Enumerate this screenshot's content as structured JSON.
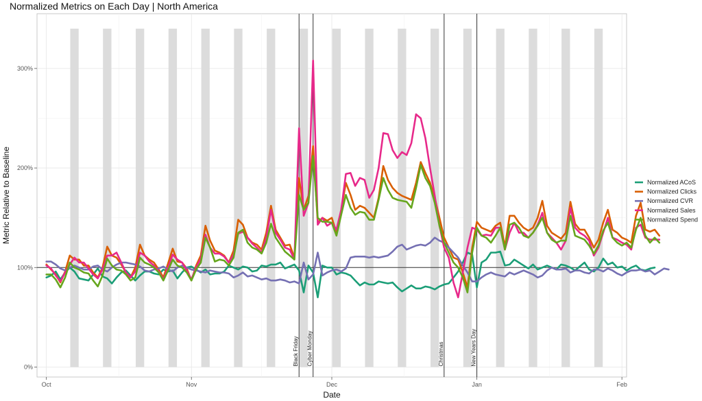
{
  "chart_data": {
    "type": "line",
    "title": "Normalized Metrics on Each Day | North America",
    "xlabel": "Date",
    "ylabel": "Metric Relative to Baseline",
    "x_start": "2023-10-01",
    "x_end": "2024-01-31",
    "xlim": [
      "2023-09-29",
      "2024-02-02"
    ],
    "ylim": [
      -0.1,
      3.55
    ],
    "x_ticks": [
      {
        "date": "2023-10-01",
        "label": "Oct"
      },
      {
        "date": "2023-11-01",
        "label": "Nov"
      },
      {
        "date": "2023-12-01",
        "label": "Dec"
      },
      {
        "date": "2024-01-01",
        "label": "Jan"
      },
      {
        "date": "2024-02-01",
        "label": "Feb"
      }
    ],
    "y_ticks": [
      {
        "value": 0,
        "label": "0%"
      },
      {
        "value": 1,
        "label": "100%"
      },
      {
        "value": 2,
        "label": "200%"
      },
      {
        "value": 3,
        "label": "300%"
      }
    ],
    "baseline": 1,
    "grid": true,
    "legend_position": "right",
    "weekend_shading": {
      "start": "2023-10-07",
      "end": "2024-01-28",
      "every_days": 7,
      "top_value": 3.4,
      "color": "#dcdcdc"
    },
    "events": [
      {
        "date": "2023-11-24",
        "label": "Black Friday"
      },
      {
        "date": "2023-11-27",
        "label": "Cyber Monday"
      },
      {
        "date": "2023-12-25",
        "label": "Christmas"
      },
      {
        "date": "2024-01-01",
        "label": "New Years Day"
      }
    ],
    "series": [
      {
        "name": "Normalized ACoS",
        "color": "#1b9e77",
        "values": [
          0.9,
          0.92,
          0.96,
          0.88,
          0.95,
          1.0,
          0.96,
          0.89,
          0.88,
          0.87,
          0.93,
          0.99,
          0.91,
          0.89,
          0.84,
          0.9,
          0.95,
          0.97,
          0.92,
          0.87,
          0.92,
          0.96,
          0.96,
          0.94,
          0.93,
          0.98,
          0.96,
          0.97,
          0.89,
          0.95,
          1.0,
          1.01,
          0.98,
          0.95,
          0.98,
          0.93,
          0.94,
          0.94,
          0.96,
          1.02,
          1.0,
          0.98,
          1.01,
          1.0,
          0.96,
          0.97,
          1.02,
          1.01,
          1.03,
          1.03,
          1.05,
          0.99,
          1.01,
          1.03,
          0.97,
          0.75,
          1.02,
          0.95,
          0.7,
          1.02,
          1.0,
          1.0,
          0.93,
          0.95,
          0.94,
          0.92,
          0.87,
          0.82,
          0.85,
          0.83,
          0.83,
          0.86,
          0.85,
          0.84,
          0.85,
          0.8,
          0.76,
          0.79,
          0.82,
          0.79,
          0.79,
          0.81,
          0.8,
          0.78,
          0.81,
          0.83,
          0.84,
          0.9,
          0.96,
          1.05,
          1.15,
          1.13,
          0.8,
          1.05,
          1.08,
          1.15,
          1.15,
          1.16,
          1.02,
          1.03,
          1.08,
          1.05,
          1.02,
          0.99,
          1.03,
          0.98,
          1.0,
          1.02,
          1.0,
          0.98,
          1.03,
          1.02,
          1.0,
          0.97,
          1.01,
          1.05,
          0.98,
          0.96,
          1.0,
          1.09,
          1.03,
          1.05,
          1.0,
          1.01,
          0.97,
          1.0,
          1.02,
          0.98,
          0.97,
          0.99,
          1.0
        ]
      },
      {
        "name": "Normalized Clicks",
        "color": "#d95f02",
        "values": [
          1.03,
          0.98,
          0.93,
          0.85,
          0.96,
          1.12,
          1.08,
          1.08,
          1.02,
          1.02,
          0.95,
          0.9,
          1.0,
          1.21,
          1.12,
          1.1,
          1.03,
          0.95,
          0.9,
          1.0,
          1.23,
          1.12,
          1.08,
          1.05,
          0.98,
          0.9,
          1.04,
          1.19,
          1.06,
          1.05,
          0.99,
          0.87,
          1.02,
          1.12,
          1.42,
          1.27,
          1.17,
          1.15,
          1.12,
          1.05,
          1.17,
          1.48,
          1.43,
          1.3,
          1.25,
          1.23,
          1.18,
          1.35,
          1.62,
          1.38,
          1.3,
          1.22,
          1.23,
          1.1,
          1.9,
          1.58,
          1.72,
          2.22,
          1.45,
          1.5,
          1.47,
          1.5,
          1.35,
          1.58,
          1.85,
          1.73,
          1.58,
          1.62,
          1.6,
          1.55,
          1.5,
          1.7,
          2.02,
          1.88,
          1.8,
          1.75,
          1.72,
          1.7,
          1.68,
          1.85,
          2.06,
          1.95,
          1.85,
          1.7,
          1.5,
          1.3,
          1.2,
          1.1,
          1.08,
          0.95,
          0.8,
          1.2,
          1.46,
          1.4,
          1.38,
          1.36,
          1.42,
          1.45,
          1.21,
          1.52,
          1.52,
          1.45,
          1.4,
          1.37,
          1.4,
          1.5,
          1.67,
          1.42,
          1.35,
          1.32,
          1.29,
          1.35,
          1.66,
          1.44,
          1.38,
          1.38,
          1.3,
          1.2,
          1.28,
          1.45,
          1.58,
          1.38,
          1.35,
          1.3,
          1.28,
          1.25,
          1.52,
          1.65,
          1.38,
          1.36,
          1.38,
          1.32
        ]
      },
      {
        "name": "Normalized CVR",
        "color": "#7570b3",
        "values": [
          1.06,
          1.06,
          1.03,
          0.99,
          0.97,
          1.0,
          1.02,
          1.0,
          0.98,
          0.98,
          1.01,
          1.02,
          0.98,
          0.96,
          1.0,
          1.03,
          1.05,
          1.05,
          1.04,
          1.03,
          1.01,
          0.97,
          0.96,
          0.98,
          0.99,
          1.01,
          0.98,
          0.96,
          1.0,
          1.02,
          1.0,
          0.98,
          0.97,
          0.96,
          0.95,
          0.97,
          0.96,
          0.95,
          0.95,
          0.94,
          0.9,
          0.92,
          0.95,
          0.91,
          0.92,
          0.9,
          0.88,
          0.89,
          0.87,
          0.87,
          0.88,
          0.87,
          0.85,
          0.86,
          0.84,
          1.05,
          0.88,
          0.93,
          1.15,
          0.92,
          0.95,
          0.97,
          0.98,
          0.96,
          0.99,
          1.1,
          1.11,
          1.11,
          1.11,
          1.1,
          1.11,
          1.1,
          1.11,
          1.12,
          1.16,
          1.21,
          1.23,
          1.18,
          1.2,
          1.22,
          1.23,
          1.22,
          1.25,
          1.3,
          1.27,
          1.25,
          1.2,
          1.15,
          1.1,
          1.02,
          0.95,
          0.86,
          0.86,
          0.9,
          0.93,
          0.95,
          0.93,
          0.92,
          0.91,
          0.95,
          0.93,
          0.95,
          0.97,
          0.95,
          0.93,
          0.9,
          0.92,
          0.97,
          1.0,
          0.98,
          0.98,
          0.99,
          0.95,
          0.97,
          0.97,
          0.95,
          0.94,
          0.98,
          0.98,
          0.96,
          0.99,
          0.97,
          0.94,
          0.92,
          0.95,
          0.97,
          0.97,
          0.98,
          0.96,
          0.97,
          0.93,
          0.96,
          0.99,
          0.98
        ]
      },
      {
        "name": "Normalized Sales",
        "color": "#e7298a",
        "values": [
          1.02,
          0.99,
          0.92,
          0.86,
          0.95,
          1.03,
          1.1,
          1.05,
          1.05,
          0.99,
          0.93,
          0.89,
          0.98,
          1.12,
          1.12,
          1.15,
          1.05,
          0.95,
          0.9,
          0.96,
          1.15,
          1.12,
          1.06,
          1.02,
          0.96,
          0.88,
          1.0,
          1.13,
          1.08,
          1.05,
          0.97,
          0.88,
          1.0,
          1.09,
          1.33,
          1.2,
          1.14,
          1.14,
          1.11,
          1.05,
          1.13,
          1.34,
          1.36,
          1.3,
          1.24,
          1.2,
          1.15,
          1.3,
          1.58,
          1.35,
          1.28,
          1.2,
          1.18,
          1.08,
          2.4,
          1.52,
          1.65,
          3.08,
          1.43,
          1.5,
          1.42,
          1.45,
          1.38,
          1.58,
          1.94,
          1.95,
          1.82,
          1.9,
          1.88,
          1.7,
          1.78,
          2.0,
          2.35,
          2.34,
          2.18,
          2.1,
          2.16,
          2.13,
          2.25,
          2.54,
          2.5,
          2.3,
          2.0,
          1.72,
          1.42,
          1.2,
          1.1,
          0.85,
          0.7,
          0.95,
          1.2,
          1.4,
          1.38,
          1.32,
          1.33,
          1.32,
          1.4,
          1.4,
          1.18,
          1.35,
          1.45,
          1.35,
          1.35,
          1.3,
          1.35,
          1.43,
          1.55,
          1.35,
          1.3,
          1.25,
          1.18,
          1.27,
          1.6,
          1.4,
          1.35,
          1.32,
          1.27,
          1.12,
          1.2,
          1.35,
          1.5,
          1.3,
          1.28,
          1.25,
          1.23,
          1.18,
          1.4,
          1.43,
          1.3,
          1.28,
          1.28,
          1.28
        ]
      },
      {
        "name": "Normalized Spend",
        "color": "#66a61e",
        "values": [
          0.93,
          0.93,
          0.88,
          0.8,
          0.9,
          1.05,
          1.0,
          0.98,
          0.95,
          0.94,
          0.87,
          0.81,
          0.92,
          1.09,
          1.02,
          0.98,
          0.97,
          0.93,
          0.87,
          0.9,
          1.1,
          1.05,
          1.03,
          1.0,
          0.95,
          0.87,
          0.97,
          1.08,
          1.02,
          1.0,
          0.95,
          0.87,
          0.98,
          1.05,
          1.3,
          1.2,
          1.06,
          1.08,
          1.07,
          1.02,
          1.1,
          1.35,
          1.38,
          1.25,
          1.2,
          1.18,
          1.14,
          1.25,
          1.44,
          1.3,
          1.23,
          1.16,
          1.12,
          1.08,
          1.73,
          1.58,
          1.65,
          2.12,
          1.5,
          1.46,
          1.46,
          1.45,
          1.32,
          1.53,
          1.73,
          1.6,
          1.53,
          1.56,
          1.55,
          1.48,
          1.48,
          1.68,
          1.9,
          1.78,
          1.7,
          1.68,
          1.67,
          1.66,
          1.6,
          1.8,
          2.03,
          1.9,
          1.82,
          1.65,
          1.42,
          1.25,
          1.15,
          1.05,
          1.0,
          0.9,
          0.75,
          1.15,
          1.4,
          1.32,
          1.3,
          1.25,
          1.32,
          1.4,
          1.18,
          1.43,
          1.45,
          1.4,
          1.32,
          1.3,
          1.35,
          1.42,
          1.5,
          1.35,
          1.28,
          1.25,
          1.27,
          1.27,
          1.52,
          1.32,
          1.3,
          1.28,
          1.22,
          1.14,
          1.22,
          1.37,
          1.45,
          1.3,
          1.25,
          1.22,
          1.25,
          1.2,
          1.38,
          1.5,
          1.32,
          1.25,
          1.3,
          1.25
        ]
      }
    ]
  }
}
